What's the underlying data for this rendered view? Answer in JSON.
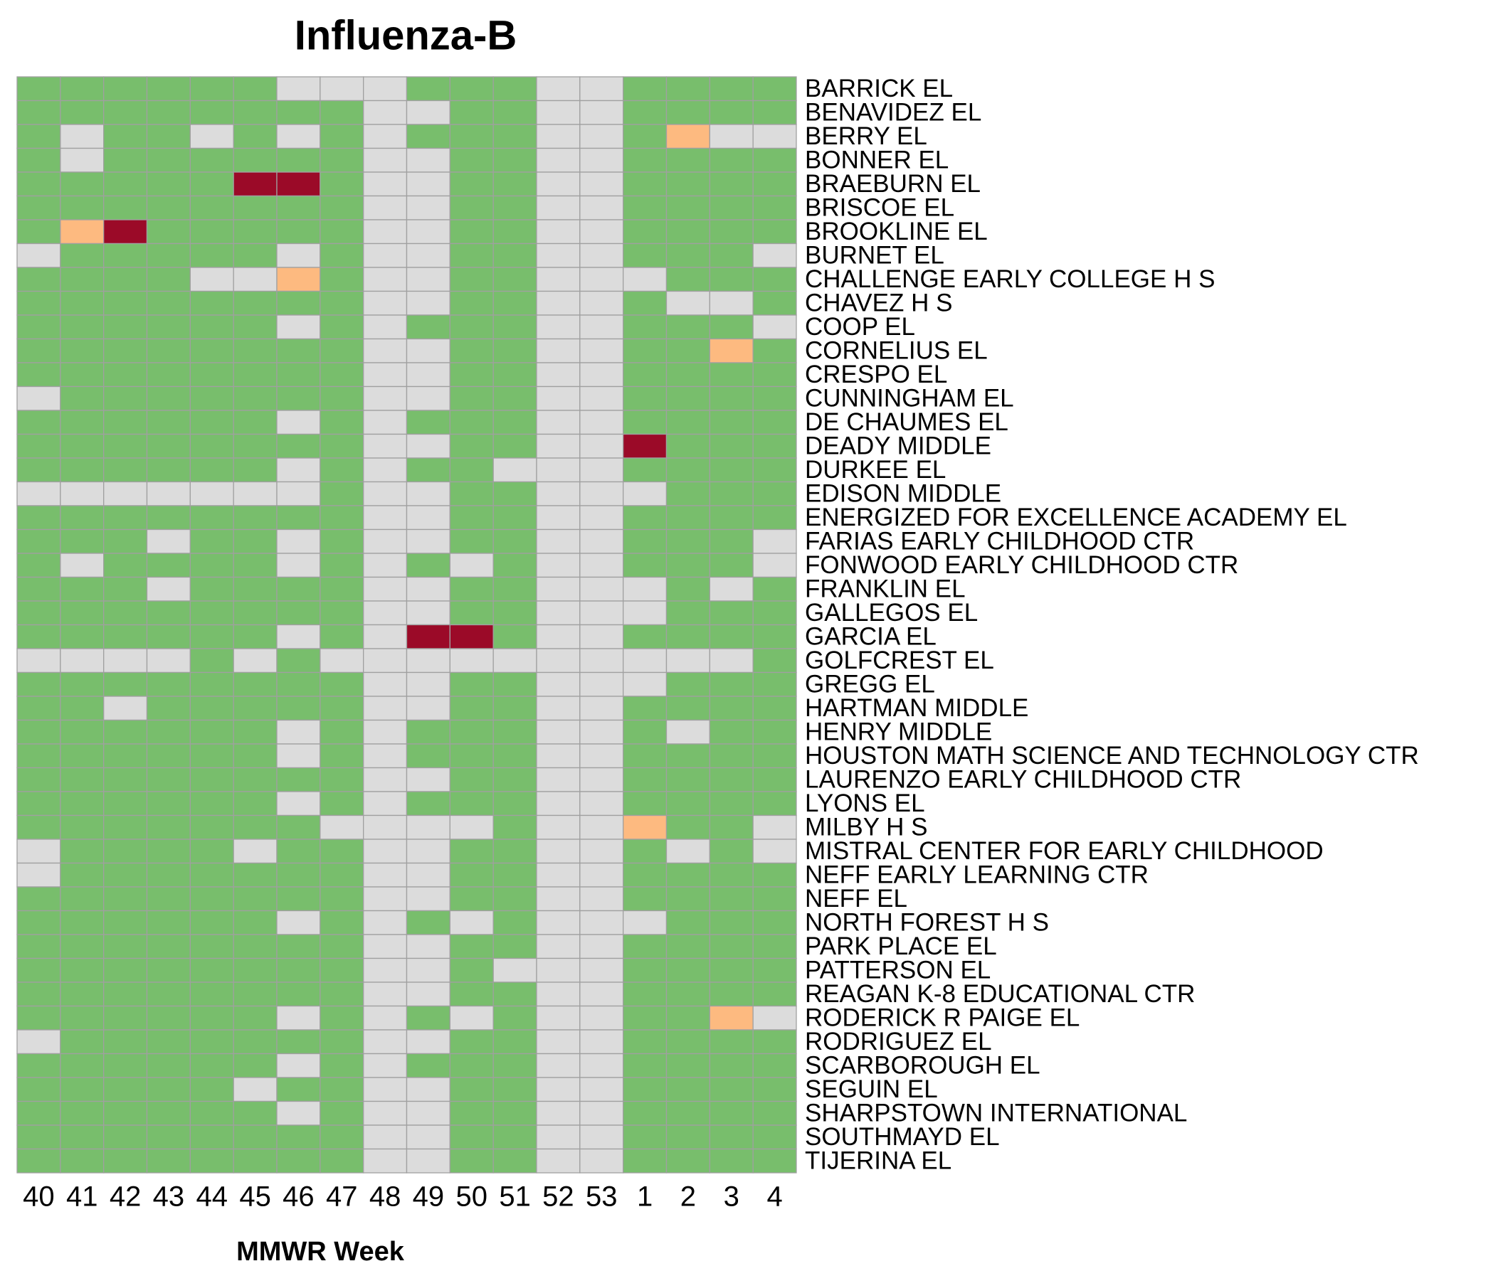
{
  "chart_data": {
    "type": "heatmap",
    "title": "Influenza-B",
    "x_label": "MMWR Week",
    "categories": [
      "40",
      "41",
      "42",
      "43",
      "44",
      "45",
      "46",
      "47",
      "48",
      "49",
      "50",
      "51",
      "52",
      "53",
      "1",
      "2",
      "3",
      "4"
    ],
    "rows": [
      "BARRICK EL",
      "BENAVIDEZ EL",
      "BERRY EL",
      "BONNER EL",
      "BRAEBURN EL",
      "BRISCOE EL",
      "BROOKLINE EL",
      "BURNET EL",
      "CHALLENGE EARLY COLLEGE H S",
      "CHAVEZ H S",
      "COOP EL",
      "CORNELIUS EL",
      "CRESPO EL",
      "CUNNINGHAM EL",
      "DE CHAUMES EL",
      "DEADY MIDDLE",
      "DURKEE EL",
      "EDISON MIDDLE",
      "ENERGIZED FOR EXCELLENCE ACADEMY EL",
      "FARIAS EARLY CHILDHOOD CTR",
      "FONWOOD EARLY CHILDHOOD CTR",
      "FRANKLIN EL",
      "GALLEGOS EL",
      "GARCIA EL",
      "GOLFCREST EL",
      "GREGG EL",
      "HARTMAN MIDDLE",
      "HENRY MIDDLE",
      "HOUSTON MATH SCIENCE AND TECHNOLOGY CTR",
      "LAURENZO EARLY CHILDHOOD CTR",
      "LYONS EL",
      "MILBY H S",
      "MISTRAL CENTER FOR EARLY CHILDHOOD",
      "NEFF EARLY LEARNING CTR",
      "NEFF EL",
      "NORTH FOREST H S",
      "PARK PLACE EL",
      "PATTERSON EL",
      "REAGAN K-8 EDUCATIONAL CTR",
      "RODERICK R PAIGE EL",
      "RODRIGUEZ EL",
      "SCARBOROUGH EL",
      "SEGUIN EL",
      "SHARPSTOWN INTERNATIONAL",
      "SOUTHMAYD EL",
      "TIJERINA EL"
    ],
    "level_colors": [
      "#78be6c",
      "#fdba80",
      "#9b0a28"
    ],
    "missing_color": "#dcdcdc",
    "values": [
      [
        0,
        0,
        0,
        0,
        0,
        0,
        null,
        null,
        null,
        0,
        0,
        0,
        null,
        null,
        0,
        0,
        0,
        0
      ],
      [
        0,
        0,
        0,
        0,
        0,
        0,
        0,
        0,
        null,
        null,
        0,
        0,
        null,
        null,
        0,
        0,
        0,
        0
      ],
      [
        0,
        null,
        0,
        0,
        null,
        0,
        null,
        0,
        null,
        0,
        0,
        0,
        null,
        null,
        0,
        1,
        null,
        null
      ],
      [
        0,
        null,
        0,
        0,
        0,
        0,
        0,
        0,
        null,
        null,
        0,
        0,
        null,
        null,
        0,
        0,
        0,
        0
      ],
      [
        0,
        0,
        0,
        0,
        0,
        2,
        2,
        0,
        null,
        null,
        0,
        0,
        null,
        null,
        0,
        0,
        0,
        0
      ],
      [
        0,
        0,
        0,
        0,
        0,
        0,
        0,
        0,
        null,
        null,
        0,
        0,
        null,
        null,
        0,
        0,
        0,
        0
      ],
      [
        0,
        1,
        2,
        0,
        0,
        0,
        0,
        0,
        null,
        null,
        0,
        0,
        null,
        null,
        0,
        0,
        0,
        0
      ],
      [
        null,
        0,
        0,
        0,
        0,
        0,
        null,
        0,
        null,
        null,
        0,
        0,
        null,
        null,
        0,
        0,
        0,
        null
      ],
      [
        0,
        0,
        0,
        0,
        null,
        null,
        1,
        0,
        null,
        null,
        0,
        0,
        null,
        null,
        null,
        0,
        0,
        0
      ],
      [
        0,
        0,
        0,
        0,
        0,
        0,
        0,
        0,
        null,
        null,
        0,
        0,
        null,
        null,
        0,
        null,
        null,
        0
      ],
      [
        0,
        0,
        0,
        0,
        0,
        0,
        null,
        0,
        null,
        0,
        0,
        0,
        null,
        null,
        0,
        0,
        0,
        null
      ],
      [
        0,
        0,
        0,
        0,
        0,
        0,
        0,
        0,
        null,
        null,
        0,
        0,
        null,
        null,
        0,
        0,
        1,
        0
      ],
      [
        0,
        0,
        0,
        0,
        0,
        0,
        0,
        0,
        null,
        null,
        0,
        0,
        null,
        null,
        0,
        0,
        0,
        0
      ],
      [
        null,
        0,
        0,
        0,
        0,
        0,
        0,
        0,
        null,
        null,
        0,
        0,
        null,
        null,
        0,
        0,
        0,
        0
      ],
      [
        0,
        0,
        0,
        0,
        0,
        0,
        null,
        0,
        null,
        0,
        0,
        0,
        null,
        null,
        0,
        0,
        0,
        0
      ],
      [
        0,
        0,
        0,
        0,
        0,
        0,
        0,
        0,
        null,
        null,
        0,
        0,
        null,
        null,
        2,
        0,
        0,
        0
      ],
      [
        0,
        0,
        0,
        0,
        0,
        0,
        null,
        0,
        null,
        0,
        0,
        null,
        null,
        null,
        0,
        0,
        0,
        0
      ],
      [
        null,
        null,
        null,
        null,
        null,
        null,
        null,
        0,
        null,
        null,
        0,
        0,
        null,
        null,
        null,
        0,
        0,
        0
      ],
      [
        0,
        0,
        0,
        0,
        0,
        0,
        0,
        0,
        null,
        null,
        0,
        0,
        null,
        null,
        0,
        0,
        0,
        0
      ],
      [
        0,
        0,
        0,
        null,
        0,
        0,
        null,
        0,
        null,
        null,
        0,
        0,
        null,
        null,
        0,
        0,
        0,
        null
      ],
      [
        0,
        null,
        0,
        0,
        0,
        0,
        null,
        0,
        null,
        0,
        null,
        0,
        null,
        null,
        0,
        0,
        0,
        null
      ],
      [
        0,
        0,
        0,
        null,
        0,
        0,
        0,
        0,
        null,
        null,
        0,
        0,
        null,
        null,
        null,
        0,
        null,
        0
      ],
      [
        0,
        0,
        0,
        0,
        0,
        0,
        0,
        0,
        null,
        null,
        0,
        0,
        null,
        null,
        null,
        0,
        0,
        0
      ],
      [
        0,
        0,
        0,
        0,
        0,
        0,
        null,
        0,
        null,
        2,
        2,
        0,
        null,
        null,
        0,
        0,
        0,
        0
      ],
      [
        null,
        null,
        null,
        null,
        0,
        null,
        0,
        null,
        null,
        null,
        null,
        null,
        null,
        null,
        null,
        null,
        null,
        0
      ],
      [
        0,
        0,
        0,
        0,
        0,
        0,
        0,
        0,
        null,
        null,
        0,
        0,
        null,
        null,
        null,
        0,
        0,
        0
      ],
      [
        0,
        0,
        null,
        0,
        0,
        0,
        0,
        0,
        null,
        null,
        0,
        0,
        null,
        null,
        0,
        0,
        0,
        0
      ],
      [
        0,
        0,
        0,
        0,
        0,
        0,
        null,
        0,
        null,
        0,
        0,
        0,
        null,
        null,
        0,
        null,
        0,
        0
      ],
      [
        0,
        0,
        0,
        0,
        0,
        0,
        null,
        0,
        null,
        0,
        0,
        0,
        null,
        null,
        0,
        0,
        0,
        0
      ],
      [
        0,
        0,
        0,
        0,
        0,
        0,
        0,
        0,
        null,
        null,
        0,
        0,
        null,
        null,
        0,
        0,
        0,
        0
      ],
      [
        0,
        0,
        0,
        0,
        0,
        0,
        null,
        0,
        null,
        0,
        0,
        0,
        null,
        null,
        0,
        0,
        0,
        0
      ],
      [
        0,
        0,
        0,
        0,
        0,
        0,
        0,
        null,
        null,
        null,
        null,
        0,
        null,
        null,
        1,
        0,
        0,
        null
      ],
      [
        null,
        0,
        0,
        0,
        0,
        null,
        0,
        0,
        null,
        null,
        0,
        0,
        null,
        null,
        0,
        null,
        0,
        null
      ],
      [
        null,
        0,
        0,
        0,
        0,
        0,
        0,
        0,
        null,
        null,
        0,
        0,
        null,
        null,
        0,
        0,
        0,
        0
      ],
      [
        0,
        0,
        0,
        0,
        0,
        0,
        0,
        0,
        null,
        null,
        0,
        0,
        null,
        null,
        0,
        0,
        0,
        0
      ],
      [
        0,
        0,
        0,
        0,
        0,
        0,
        null,
        0,
        null,
        0,
        null,
        0,
        null,
        null,
        null,
        0,
        0,
        0
      ],
      [
        0,
        0,
        0,
        0,
        0,
        0,
        0,
        0,
        null,
        null,
        0,
        0,
        null,
        null,
        0,
        0,
        0,
        0
      ],
      [
        0,
        0,
        0,
        0,
        0,
        0,
        0,
        0,
        null,
        null,
        0,
        null,
        null,
        null,
        0,
        0,
        0,
        0
      ],
      [
        0,
        0,
        0,
        0,
        0,
        0,
        0,
        0,
        null,
        null,
        0,
        0,
        null,
        null,
        0,
        0,
        0,
        0
      ],
      [
        0,
        0,
        0,
        0,
        0,
        0,
        null,
        0,
        null,
        0,
        null,
        0,
        null,
        null,
        0,
        0,
        1,
        null
      ],
      [
        null,
        0,
        0,
        0,
        0,
        0,
        0,
        0,
        null,
        null,
        0,
        0,
        null,
        null,
        0,
        0,
        0,
        0
      ],
      [
        0,
        0,
        0,
        0,
        0,
        0,
        null,
        0,
        null,
        0,
        0,
        0,
        null,
        null,
        0,
        0,
        0,
        0
      ],
      [
        0,
        0,
        0,
        0,
        0,
        null,
        0,
        0,
        null,
        null,
        0,
        0,
        null,
        null,
        0,
        0,
        0,
        0
      ],
      [
        0,
        0,
        0,
        0,
        0,
        0,
        null,
        0,
        null,
        null,
        0,
        0,
        null,
        null,
        0,
        0,
        0,
        0
      ],
      [
        0,
        0,
        0,
        0,
        0,
        0,
        0,
        0,
        null,
        null,
        0,
        0,
        null,
        null,
        0,
        0,
        0,
        0
      ],
      [
        0,
        0,
        0,
        0,
        0,
        0,
        0,
        0,
        null,
        null,
        0,
        0,
        null,
        null,
        0,
        0,
        0,
        0
      ]
    ]
  }
}
